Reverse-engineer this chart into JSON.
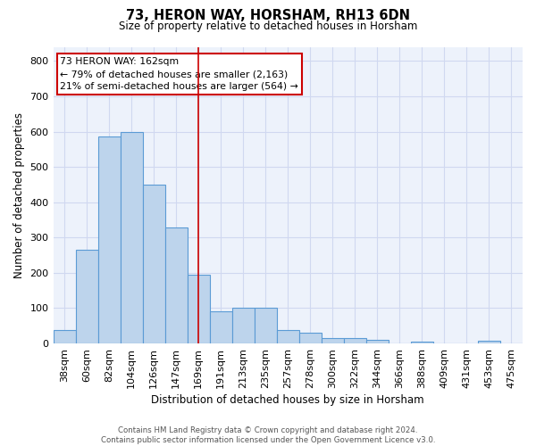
{
  "title": "73, HERON WAY, HORSHAM, RH13 6DN",
  "subtitle": "Size of property relative to detached houses in Horsham",
  "xlabel": "Distribution of detached houses by size in Horsham",
  "ylabel": "Number of detached properties",
  "categories": [
    "38sqm",
    "60sqm",
    "82sqm",
    "104sqm",
    "126sqm",
    "147sqm",
    "169sqm",
    "191sqm",
    "213sqm",
    "235sqm",
    "257sqm",
    "278sqm",
    "300sqm",
    "322sqm",
    "344sqm",
    "366sqm",
    "388sqm",
    "409sqm",
    "431sqm",
    "453sqm",
    "475sqm"
  ],
  "values": [
    37,
    265,
    585,
    600,
    450,
    328,
    195,
    90,
    102,
    102,
    37,
    30,
    15,
    15,
    11,
    0,
    6,
    0,
    0,
    7,
    0
  ],
  "bar_color": "#bdd4ec",
  "bar_edge_color": "#5b9bd5",
  "background_color": "#edf2fb",
  "grid_color": "#d0d8f0",
  "vline_x": 6,
  "vline_color": "#cc0000",
  "annotation_text": "73 HERON WAY: 162sqm\n← 79% of detached houses are smaller (2,163)\n21% of semi-detached houses are larger (564) →",
  "annotation_box_color": "#ffffff",
  "annotation_box_edge": "#cc0000",
  "footer_text": "Contains HM Land Registry data © Crown copyright and database right 2024.\nContains public sector information licensed under the Open Government Licence v3.0.",
  "ylim": [
    0,
    840
  ],
  "yticks": [
    0,
    100,
    200,
    300,
    400,
    500,
    600,
    700,
    800
  ]
}
